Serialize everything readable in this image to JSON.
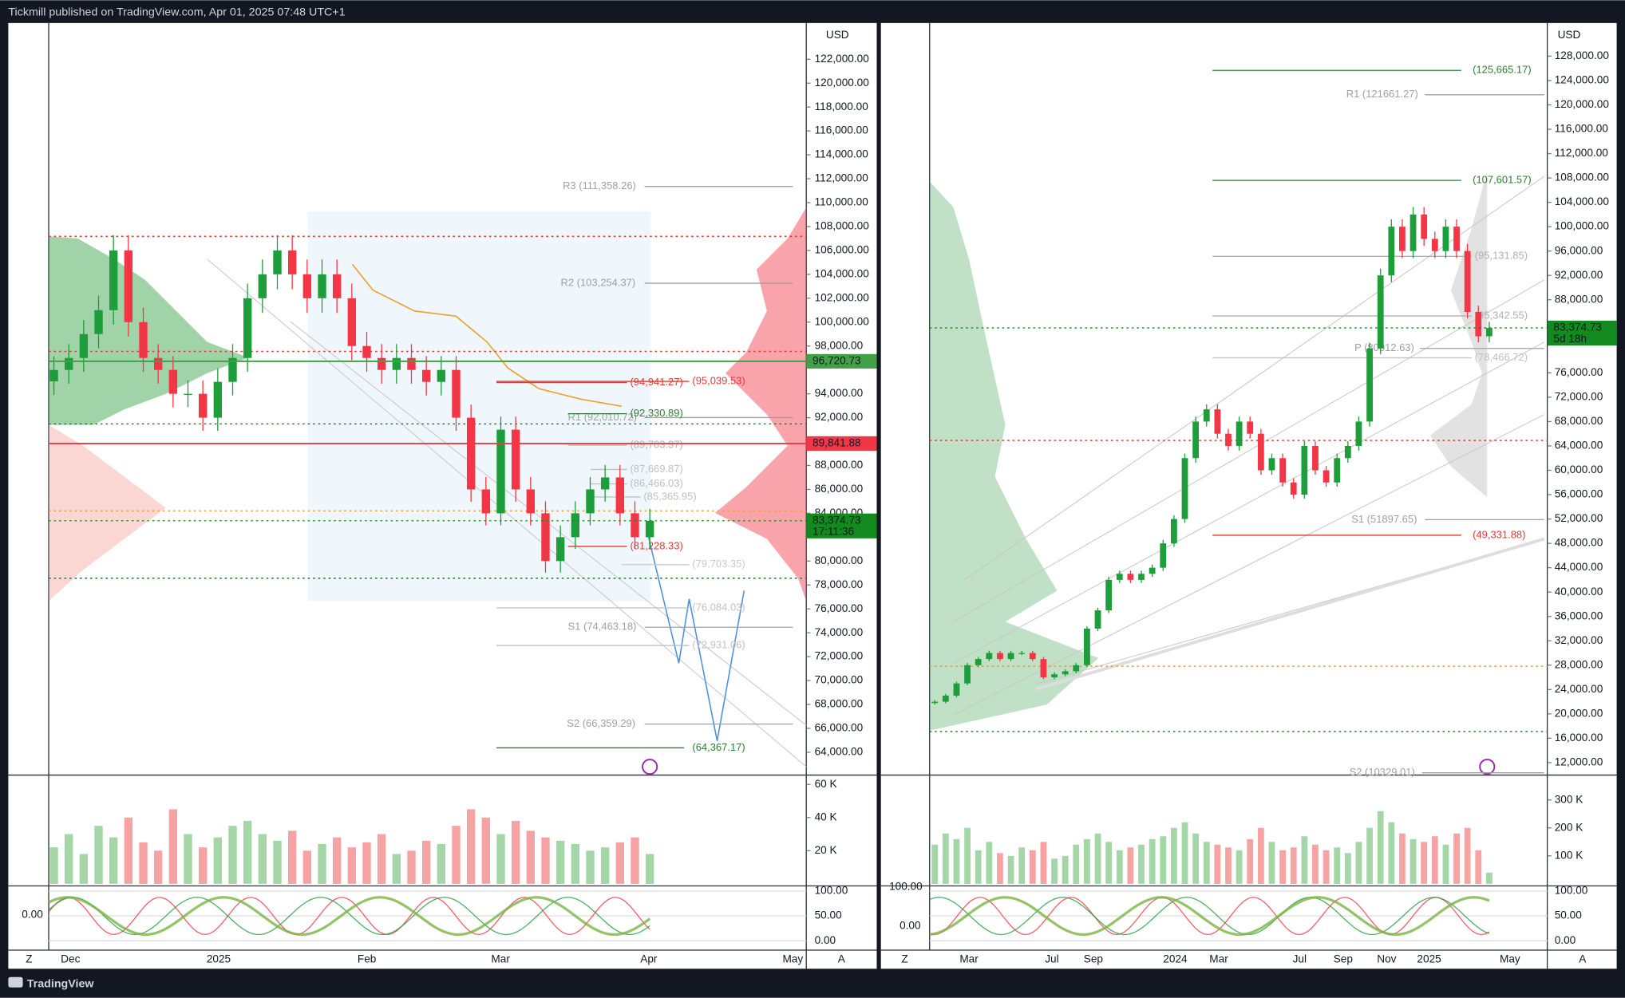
{
  "header": {
    "title": "Tickmill published on TradingView.com, Apr 01, 2025 07:48 UTC+1"
  },
  "footer": {
    "brand": "TradingView"
  },
  "left_chart": {
    "currency": "USD",
    "price_ticks": [
      {
        "value": 122000,
        "label": "122,000.00"
      },
      {
        "value": 120000,
        "label": "120,000.00"
      },
      {
        "value": 118000,
        "label": "118,000.00"
      },
      {
        "value": 116000,
        "label": "116,000.00"
      },
      {
        "value": 114000,
        "label": "114,000.00"
      },
      {
        "value": 112000,
        "label": "112,000.00"
      },
      {
        "value": 110000,
        "label": "110,000.00"
      },
      {
        "value": 108000,
        "label": "108,000.00"
      },
      {
        "value": 106000,
        "label": "106,000.00"
      },
      {
        "value": 104000,
        "label": "104,000.00"
      },
      {
        "value": 102000,
        "label": "102,000.00"
      },
      {
        "value": 100000,
        "label": "100,000.00"
      },
      {
        "value": 98000,
        "label": "98,000.00"
      },
      {
        "value": 94000,
        "label": "94,000.00"
      },
      {
        "value": 92000,
        "label": "92,000.00"
      },
      {
        "value": 88000,
        "label": "88,000.00"
      },
      {
        "value": 86000,
        "label": "86,000.00"
      },
      {
        "value": 84000,
        "label": "84,000.00"
      },
      {
        "value": 80000,
        "label": "80,000.00"
      },
      {
        "value": 78000,
        "label": "78,000.00"
      },
      {
        "value": 76000,
        "label": "76,000.00"
      },
      {
        "value": 74000,
        "label": "74,000.00"
      },
      {
        "value": 72000,
        "label": "72,000.00"
      },
      {
        "value": 70000,
        "label": "70,000.00"
      },
      {
        "value": 68000,
        "label": "68,000.00"
      },
      {
        "value": 66000,
        "label": "66,000.00"
      },
      {
        "value": 64000,
        "label": "64,000.00"
      }
    ],
    "levels": [
      {
        "value": 111358.26,
        "label": "R3 (111,358.26)",
        "color": "#a0a0a0"
      },
      {
        "value": 103254.37,
        "label": "R2 (103,254.37)",
        "color": "#a0a0a0"
      },
      {
        "value": 94941.27,
        "label": "(94,941.27)",
        "color": "#e53935"
      },
      {
        "value": 95039.53,
        "label": "(95,039.53)",
        "color": "#e53935"
      },
      {
        "value": 92010.72,
        "label": "R1 (92,010.72)",
        "color": "#a0a0a0"
      },
      {
        "value": 92330.89,
        "label": "(92,330.89)",
        "color": "#2e7d32"
      },
      {
        "value": 89703.37,
        "label": "(89,703.37)",
        "color": "#b0b0b0"
      },
      {
        "value": 87669.87,
        "label": "(87,669.87)",
        "color": "#c0c0c0"
      },
      {
        "value": 86466.03,
        "label": "(86,466.03)",
        "color": "#c0c0c0"
      },
      {
        "value": 85365.95,
        "label": "(85,365.95)",
        "color": "#c0c0c0"
      },
      {
        "value": 81228.33,
        "label": "(81,228.33)",
        "color": "#e53935"
      },
      {
        "value": 79703.35,
        "label": "(79,703.35)",
        "color": "#c8c8c8"
      },
      {
        "value": 76084.03,
        "label": "(76,084.03)",
        "color": "#c0c0c0"
      },
      {
        "value": 74463.18,
        "label": "S1 (74,463.18)",
        "color": "#a0a0a0"
      },
      {
        "value": 72931.06,
        "label": "(72,931.06)",
        "color": "#c0c0c0"
      },
      {
        "value": 66359.29,
        "label": "S2 (66,359.29)",
        "color": "#a0a0a0"
      },
      {
        "value": 64367.17,
        "label": "(64,367.17)",
        "color": "#2e7d32"
      }
    ],
    "badges": [
      {
        "value": 96720.73,
        "label": "96,720.73",
        "color": "#43a047"
      },
      {
        "value": 89841.88,
        "label": "89,841.88",
        "color": "#f23645"
      },
      {
        "value": 83374.73,
        "label": "83,374.73",
        "color": "#138a1f"
      }
    ],
    "countdown": "17:11:36",
    "time_labels": [
      "Dec",
      "2025",
      "Feb",
      "Mar",
      "Apr",
      "May"
    ],
    "closes": [
      96000,
      97000,
      99000,
      101000,
      106000,
      100000,
      97000,
      96000,
      94000,
      94000,
      92000,
      95000,
      97000,
      102000,
      104000,
      106000,
      104000,
      102000,
      104000,
      102000,
      98000,
      97000,
      96000,
      97000,
      96000,
      95000,
      96000,
      92000,
      86000,
      84000,
      91000,
      86000,
      84000,
      80000,
      82000,
      84000,
      86000,
      87000,
      84000,
      82000,
      83374.73
    ],
    "volume": [
      22000,
      30000,
      18000,
      35000,
      28000,
      40000,
      25000,
      20000,
      45000,
      30000,
      22000,
      28000,
      35000,
      38000,
      30000,
      26000,
      32000,
      20000,
      24000,
      28000,
      22000,
      25000,
      30000,
      18000,
      20000,
      26000,
      24000,
      35000,
      45000,
      40000,
      30000,
      38000,
      32000,
      28000,
      26000,
      24000,
      20000,
      22000,
      25000,
      28000,
      18000
    ],
    "volume_ticks": [
      {
        "value": 60000,
        "label": "60 K"
      },
      {
        "value": 40000,
        "label": "40 K"
      },
      {
        "value": 20000,
        "label": "20 K"
      }
    ],
    "osc_ticks": [
      {
        "value": 100,
        "label": "100.00"
      },
      {
        "value": 50,
        "label": "50.00"
      },
      {
        "value": 0,
        "label": "0.00"
      }
    ],
    "osc_left_label": "0.00",
    "zoom": "Z",
    "auto": "A"
  },
  "right_chart": {
    "currency": "USD",
    "price_ticks": [
      {
        "value": 128000,
        "label": "128,000.00"
      },
      {
        "value": 124000,
        "label": "124,000.00"
      },
      {
        "value": 120000,
        "label": "120,000.00"
      },
      {
        "value": 116000,
        "label": "116,000.00"
      },
      {
        "value": 112000,
        "label": "112,000.00"
      },
      {
        "value": 108000,
        "label": "108,000.00"
      },
      {
        "value": 104000,
        "label": "104,000.00"
      },
      {
        "value": 100000,
        "label": "100,000.00"
      },
      {
        "value": 96000,
        "label": "96,000.00"
      },
      {
        "value": 92000,
        "label": "92,000.00"
      },
      {
        "value": 88000,
        "label": "88,000.00"
      },
      {
        "value": 76000,
        "label": "76,000.00"
      },
      {
        "value": 72000,
        "label": "72,000.00"
      },
      {
        "value": 68000,
        "label": "68,000.00"
      },
      {
        "value": 64000,
        "label": "64,000.00"
      },
      {
        "value": 60000,
        "label": "60,000.00"
      },
      {
        "value": 56000,
        "label": "56,000.00"
      },
      {
        "value": 52000,
        "label": "52,000.00"
      },
      {
        "value": 48000,
        "label": "48,000.00"
      },
      {
        "value": 44000,
        "label": "44,000.00"
      },
      {
        "value": 40000,
        "label": "40,000.00"
      },
      {
        "value": 36000,
        "label": "36,000.00"
      },
      {
        "value": 32000,
        "label": "32,000.00"
      },
      {
        "value": 28000,
        "label": "28,000.00"
      },
      {
        "value": 24000,
        "label": "24,000.00"
      },
      {
        "value": 20000,
        "label": "20,000.00"
      },
      {
        "value": 16000,
        "label": "16,000.00"
      },
      {
        "value": 12000,
        "label": "12,000.00"
      }
    ],
    "levels": [
      {
        "value": 125665.17,
        "label": "(125,665.17)",
        "color": "#2e7d32"
      },
      {
        "value": 121661.27,
        "label": "R1 (121661.27)",
        "color": "#a0a0a0"
      },
      {
        "value": 107601.57,
        "label": "(107,601.57)",
        "color": "#2e7d32"
      },
      {
        "value": 95131.85,
        "label": "(95,131.85)",
        "color": "#b0b0b0"
      },
      {
        "value": 85342.55,
        "label": "(85,342.55)",
        "color": "#b0b0b0"
      },
      {
        "value": 80012.63,
        "label": "P (80012.63)",
        "color": "#a0a0a0"
      },
      {
        "value": 78466.72,
        "label": "(78,466.72)",
        "color": "#c0c0c0"
      },
      {
        "value": 51897.65,
        "label": "S1 (51897.65)",
        "color": "#a0a0a0"
      },
      {
        "value": 49331.88,
        "label": "(49,331.88)",
        "color": "#e53935"
      },
      {
        "value": 10329.01,
        "label": "S2 (10329.01)",
        "color": "#a0a0a0"
      }
    ],
    "badges": [
      {
        "value": 83374.73,
        "label": "83,374.73",
        "color": "#138a1f"
      }
    ],
    "countdown": "5d 18h",
    "time_labels": [
      "Mar",
      "Jul",
      "Sep",
      "2024",
      "Mar",
      "Jul",
      "Sep",
      "Nov",
      "2025",
      "May"
    ],
    "closes": [
      22000,
      23000,
      25000,
      28000,
      29000,
      30000,
      29000,
      30000,
      30000,
      29000,
      26000,
      26500,
      27000,
      28000,
      34000,
      37000,
      42000,
      43000,
      42000,
      43000,
      44000,
      48000,
      52000,
      62000,
      68000,
      70000,
      66000,
      64000,
      68000,
      66000,
      60000,
      62000,
      58000,
      56000,
      64000,
      60000,
      58000,
      62000,
      64000,
      68000,
      80000,
      92000,
      100000,
      96000,
      102000,
      98000,
      96000,
      100000,
      96000,
      86000,
      82000,
      83374.73
    ],
    "volume": [
      140000,
      180000,
      160000,
      200000,
      120000,
      150000,
      110000,
      100000,
      130000,
      120000,
      150000,
      90000,
      100000,
      140000,
      160000,
      180000,
      150000,
      120000,
      130000,
      140000,
      160000,
      170000,
      200000,
      220000,
      180000,
      150000,
      140000,
      130000,
      120000,
      160000,
      200000,
      150000,
      120000,
      130000,
      170000,
      140000,
      120000,
      130000,
      110000,
      150000,
      200000,
      260000,
      220000,
      180000,
      160000,
      150000,
      170000,
      140000,
      180000,
      200000,
      120000,
      40000
    ],
    "volume_ticks": [
      {
        "value": 300000,
        "label": "300 K"
      },
      {
        "value": 200000,
        "label": "200 K"
      },
      {
        "value": 100000,
        "label": "100 K"
      }
    ],
    "osc_ticks": [
      {
        "value": 100,
        "label": "100.00"
      },
      {
        "value": 50,
        "label": "50.00"
      },
      {
        "value": 0,
        "label": "0.00"
      }
    ],
    "osc_left_labels": [
      "100.00",
      "0.00"
    ],
    "zoom": "Z",
    "auto": "A"
  }
}
